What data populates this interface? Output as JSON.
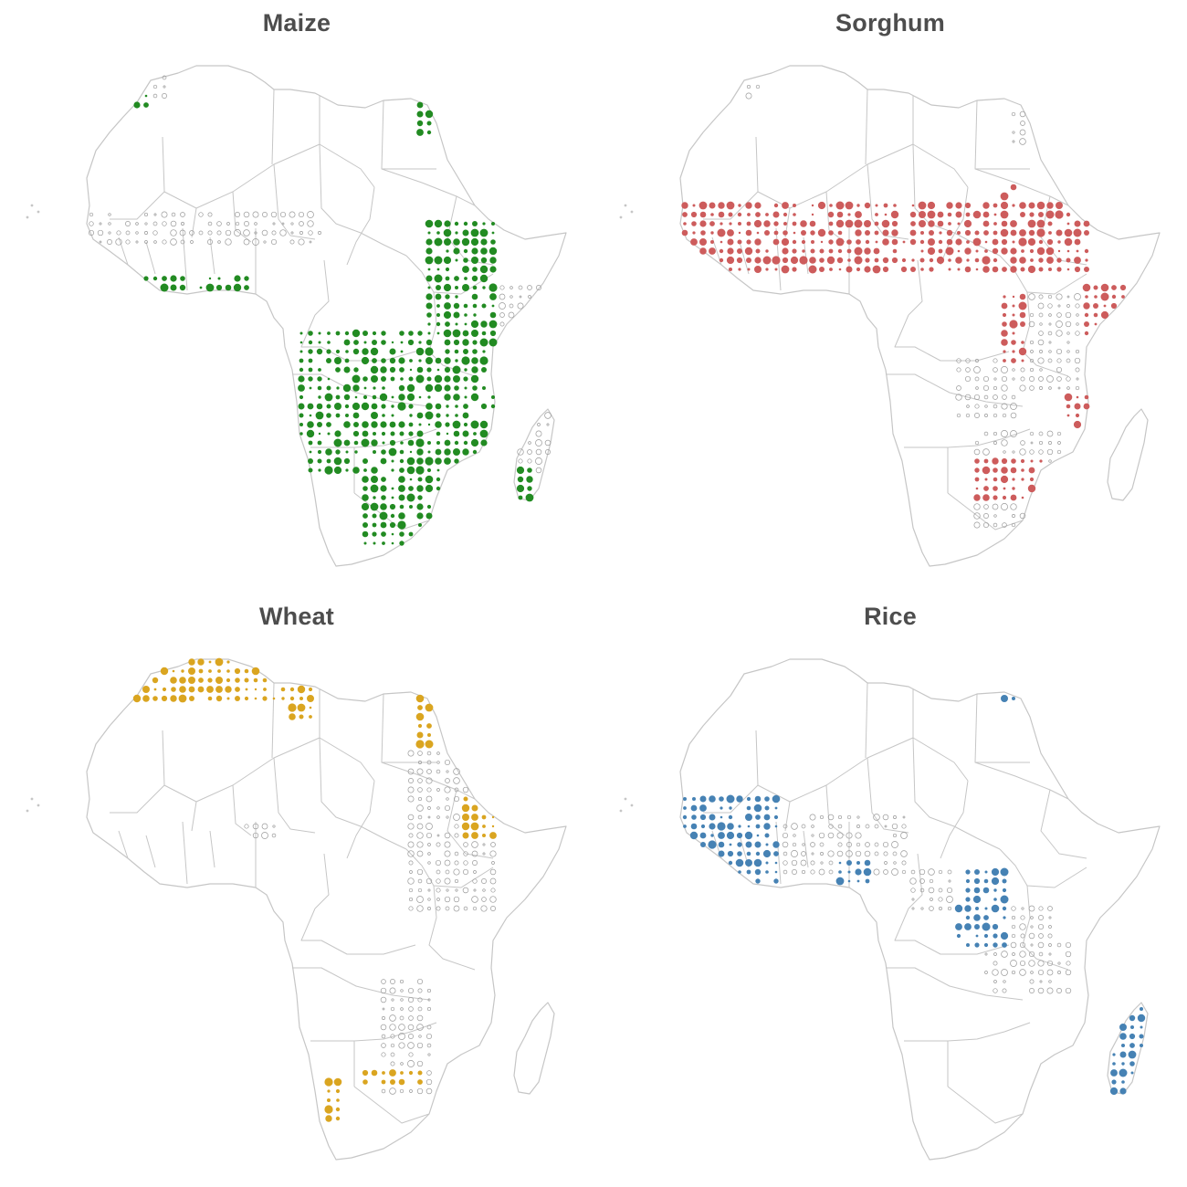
{
  "panels": [
    {
      "name": "maize",
      "title": "Maize",
      "color": "#228b22"
    },
    {
      "name": "sorghum",
      "title": "Sorghum",
      "color": "#cd5c5c"
    },
    {
      "name": "wheat",
      "title": "Wheat",
      "color": "#daa520"
    },
    {
      "name": "rice",
      "title": "Rice",
      "color": "#4682b4"
    }
  ]
}
